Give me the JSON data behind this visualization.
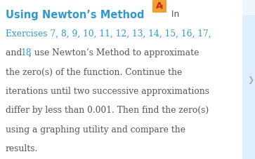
{
  "title": "Using Newton’s Method",
  "title_color": "#3399cc",
  "title_fontsize": 10.5,
  "body_color": "#555555",
  "link_color": "#3399cc",
  "body_fontsize": 8.8,
  "background_color": "#ffffff",
  "right_strip_color": "#ddeeff",
  "line1": "Exercises 7, 8, 9, 10, 11, 12, 13, 14, 15, 16, 17,",
  "line2_pre": "and ",
  "line2_link": "18",
  "line2_post": ", use Newton’s Method to approximate",
  "line3": "the zero(s) of the function. Continue the",
  "line4": "iterations until two successive approximations",
  "line5": "differ by less than 0.001. Then find the zero(s)",
  "line6": "using a graphing utility and compare the",
  "line7": "results.",
  "icon_orange": "#f0a030",
  "icon_red": "#cc2222",
  "in_text": " In"
}
